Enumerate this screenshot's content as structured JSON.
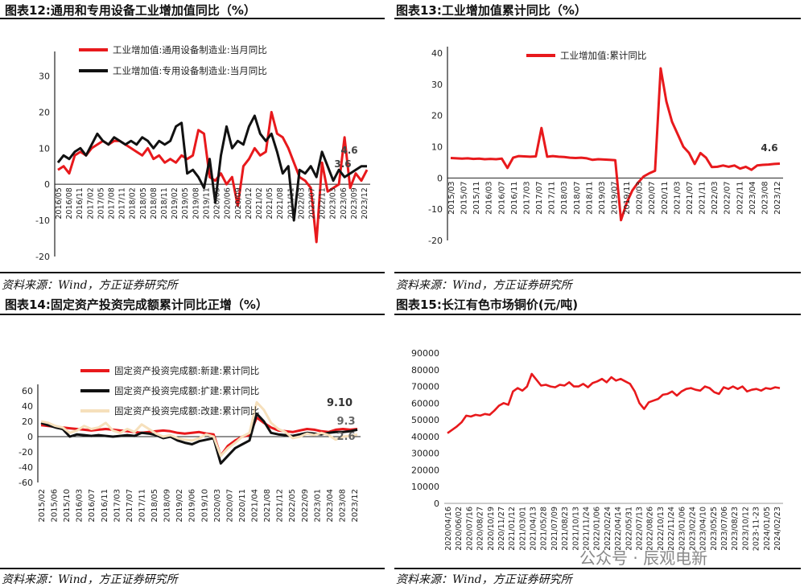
{
  "panels": [
    {
      "title": "图表12:通用和专用设备工业增加值同比（%）",
      "source": "资料来源：Wind，方正证券研究所",
      "chart_data": {
        "type": "line",
        "ylim": [
          -20,
          35
        ],
        "yticks": [
          30,
          20,
          10,
          0,
          -10,
          -20
        ],
        "x_tick_labels": [
          "2016/05",
          "2016/08",
          "2016/11",
          "2017/02",
          "2017/05",
          "2017/08",
          "2017/11",
          "2018/02",
          "2018/05",
          "2018/08",
          "2018/11",
          "2019/02",
          "2019/05",
          "2019/08",
          "2019/11",
          "2020/03",
          "2020/06",
          "2020/09",
          "2020/12",
          "2021/02",
          "2021/05",
          "2021/08",
          "2021/11",
          "2022/03",
          "2022/07",
          "2022/11",
          "2023/03",
          "2023/06",
          "2023/09",
          "2023/12"
        ],
        "series": [
          {
            "name": "工业增加值:通用设备制造业:当月同比",
            "color": "#e8191c",
            "values": [
              4,
              5,
              3,
              8,
              9,
              8,
              10,
              11,
              12,
              11,
              12,
              12,
              11,
              10,
              9,
              8,
              10,
              7,
              8,
              6,
              7,
              6,
              8,
              7,
              8,
              15,
              14,
              2,
              1,
              3,
              0,
              2,
              -6,
              5,
              7,
              10,
              8,
              9,
              20,
              14,
              13,
              10,
              6,
              2,
              1,
              -1,
              -16,
              6,
              -2,
              -1,
              0,
              13,
              -1,
              3,
              1,
              4
            ]
          },
          {
            "name": "工业增加值:专用设备制造业:当月同比",
            "color": "#111111",
            "values": [
              6,
              8,
              7,
              9,
              10,
              8,
              11,
              14,
              12,
              11,
              13,
              12,
              11,
              12,
              11,
              13,
              12,
              10,
              12,
              11,
              12,
              16,
              17,
              3,
              4,
              2,
              -1,
              7,
              -5,
              8,
              16,
              10,
              12,
              11,
              16,
              19,
              14,
              12,
              14,
              9,
              3,
              5,
              -10,
              4,
              3,
              5,
              2,
              9,
              5,
              1,
              4,
              2,
              3,
              4,
              5,
              5
            ]
          }
        ],
        "annotations": [
          "4.6",
          "3.6"
        ]
      }
    },
    {
      "title": "图表13:工业增加值累计同比（%）",
      "source": "资料来源：Wind，方正证券研究所",
      "chart_data": {
        "type": "line",
        "ylim": [
          -20,
          40
        ],
        "yticks": [
          40,
          30,
          20,
          10,
          0,
          -10,
          -20
        ],
        "x_tick_labels": [
          "2015/03",
          "2015/07",
          "2015/11",
          "2016/03",
          "2016/07",
          "2016/11",
          "2017/03",
          "2017/07",
          "2017/11",
          "2018/03",
          "2018/07",
          "2018/11",
          "2019/03",
          "2019/07",
          "2019/11",
          "2020/03",
          "2020/07",
          "2020/11",
          "2021/03",
          "2021/07",
          "2021/11",
          "2022/03",
          "2022/07",
          "2022/11",
          "2023/04",
          "2023/08",
          "2023/12"
        ],
        "series": [
          {
            "name": "工业增加值:累计同比",
            "color": "#e8191c",
            "values": [
              6.4,
              6.3,
              6.2,
              6.3,
              6.1,
              6.2,
              6.0,
              6.1,
              6.0,
              6.2,
              3.2,
              6.5,
              7.0,
              6.9,
              6.8,
              6.9,
              16.0,
              6.8,
              7.0,
              6.8,
              6.7,
              6.5,
              6.4,
              6.5,
              6.3,
              5.8,
              6.0,
              5.9,
              5.8,
              5.7,
              -13.5,
              -8.0,
              -4.0,
              -1.5,
              0.5,
              1.5,
              2.3,
              35.1,
              24.5,
              18.0,
              14.0,
              10.0,
              8.0,
              4.5,
              8.0,
              6.5,
              3.5,
              3.6,
              4.0,
              3.6,
              4.0,
              3.0,
              3.6,
              2.6,
              4.0,
              4.2,
              4.3,
              4.5,
              4.6
            ]
          }
        ],
        "annotations": [
          "4.6"
        ]
      }
    },
    {
      "title": "图表14:固定资产投资完成额累计同比正增（%）",
      "source": "资料来源：Wind，方正证券研究所",
      "chart_data": {
        "type": "line",
        "ylim": [
          -60,
          60
        ],
        "yticks": [
          60,
          40,
          20,
          0,
          -20,
          -40,
          -60
        ],
        "x_tick_labels": [
          "2015/02",
          "2015/06",
          "2015/10",
          "2016/03",
          "2016/07",
          "2016/11",
          "2017/03",
          "2017/07",
          "2017/11",
          "2018/05",
          "2018/09",
          "2019/02",
          "2019/06",
          "2019/10",
          "2020/03",
          "2020/07",
          "2020/11",
          "2021/04",
          "2021/08",
          "2021/12",
          "2022/05",
          "2022/09",
          "2023/01",
          "2023/04",
          "2023/08",
          "2023/12"
        ],
        "series": [
          {
            "name": "固定资产投资完成额:新建:累计同比",
            "color": "#e8191c",
            "values": [
              15,
              14,
              13,
              12,
              11,
              10,
              9,
              8,
              9,
              10,
              9,
              8,
              7,
              6,
              5,
              6,
              7,
              8,
              7,
              5,
              4,
              5,
              6,
              4,
              3,
              -25,
              -12,
              -5,
              0,
              2,
              25,
              18,
              12,
              8,
              7,
              6,
              8,
              10,
              9,
              7,
              6,
              9,
              10,
              9,
              10
            ]
          },
          {
            "name": "固定资产投资完成额:扩建:累计同比",
            "color": "#111111",
            "values": [
              18,
              15,
              12,
              10,
              0,
              3,
              2,
              1,
              2,
              1,
              0,
              1,
              2,
              1,
              5,
              4,
              2,
              -2,
              0,
              -5,
              -8,
              -10,
              -6,
              -4,
              -2,
              -35,
              -25,
              -15,
              -10,
              -5,
              30,
              20,
              5,
              3,
              2,
              1,
              3,
              5,
              4,
              3,
              5,
              6,
              6,
              7,
              9
            ]
          },
          {
            "name": "固定资产投资完成额:改建:累计同比",
            "color": "#f6e0bc",
            "values": [
              20,
              18,
              14,
              12,
              5,
              8,
              14,
              10,
              12,
              18,
              8,
              5,
              10,
              6,
              16,
              10,
              4,
              0,
              2,
              -2,
              -4,
              -5,
              -2,
              3,
              0,
              -25,
              -15,
              -8,
              0,
              5,
              45,
              35,
              18,
              10,
              6,
              -2,
              0,
              4,
              2,
              5,
              2,
              -4,
              0,
              1,
              2.6
            ]
          }
        ],
        "annotations": [
          "9.10",
          "9.3",
          "2.6"
        ]
      }
    },
    {
      "title": "图表15:长江有色市场铜价(元/吨)",
      "source": "资料来源：Wind，方正证券研究所",
      "chart_data": {
        "type": "line",
        "ylim": [
          0,
          90000
        ],
        "yticks": [
          90000,
          80000,
          70000,
          60000,
          50000,
          40000,
          30000,
          20000,
          10000,
          0
        ],
        "x_tick_labels": [
          "2020/04/16",
          "2020/06/02",
          "2020/07/16",
          "2020/08/27",
          "2020/10/19",
          "2020/11/27",
          "2021/01/12",
          "2021/03/01",
          "2021/04/13",
          "2021/05/28",
          "2021/07/09",
          "2021/08/23",
          "2021/10/13",
          "2021/11/24",
          "2022/01/06",
          "2022/02/24",
          "2022/04/14",
          "2022/05/31",
          "2022/07/13",
          "2022/08/26",
          "2022/10/13",
          "2022/11/24",
          "2023/01/06",
          "2023/02/24",
          "2023/04/10",
          "2023/05/25",
          "2023/07/06",
          "2023/08/23",
          "2023/10/12",
          "2023-11-23",
          "2024/01/05",
          "2024/02/23"
        ],
        "series": [
          {
            "name": "",
            "color": "#e8191c",
            "values": [
              42000,
              44000,
              46000,
              48500,
              52500,
              52000,
              53000,
              52500,
              53500,
              53000,
              55500,
              58500,
              60000,
              59000,
              67000,
              69000,
              67500,
              70000,
              77500,
              74000,
              70500,
              71000,
              70000,
              69500,
              71000,
              70500,
              72500,
              70000,
              70000,
              71500,
              69500,
              72000,
              73000,
              74500,
              72500,
              75500,
              73500,
              74500,
              73000,
              71500,
              67000,
              60000,
              56500,
              60500,
              61500,
              62500,
              65000,
              65500,
              67000,
              64500,
              67000,
              68500,
              69000,
              68000,
              67500,
              70000,
              69000,
              66500,
              65500,
              69500,
              68500,
              70000,
              68500,
              70000,
              67000,
              68000,
              68500,
              67500,
              69000,
              68500,
              69500,
              69000
            ]
          }
        ]
      }
    }
  ],
  "watermark": "公众号 · 辰观电新"
}
